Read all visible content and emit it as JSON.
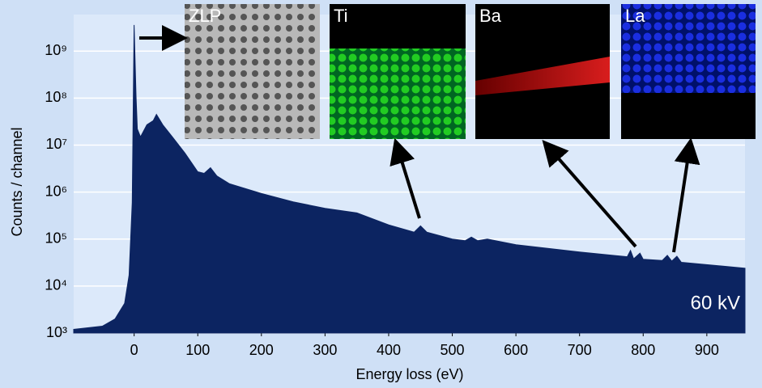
{
  "chart_data": {
    "type": "area",
    "color": "#0c2461",
    "log_y": true,
    "grid": true,
    "x_label": "Energy loss (eV)",
    "y_label": "Counts / channel",
    "annotation": "60 kV",
    "insets": [
      "ZLP",
      "Ti",
      "Ba",
      "La"
    ],
    "xlim": [
      -95,
      960
    ],
    "xticks": [
      0,
      100,
      200,
      300,
      400,
      500,
      600,
      700,
      800,
      900
    ],
    "ylim": [
      1000,
      6000000000
    ],
    "yticks": [
      {
        "value": 1000,
        "label": "10³"
      },
      {
        "value": 10000,
        "label": "10⁴"
      },
      {
        "value": 100000,
        "label": "10⁵"
      },
      {
        "value": 1000000,
        "label": "10⁶"
      },
      {
        "value": 10000000,
        "label": "10⁷"
      },
      {
        "value": 100000000,
        "label": "10⁸"
      },
      {
        "value": 1000000000,
        "label": "10⁹"
      }
    ],
    "x": [
      -95,
      -50,
      -30,
      -15,
      -8,
      -3,
      0,
      3,
      5,
      10,
      20,
      30,
      35,
      45,
      60,
      80,
      100,
      110,
      120,
      130,
      150,
      200,
      250,
      300,
      350,
      400,
      440,
      450,
      460,
      500,
      520,
      530,
      540,
      555,
      600,
      700,
      775,
      780,
      785,
      795,
      800,
      830,
      838,
      845,
      853,
      860,
      960
    ],
    "values": [
      1200,
      1400,
      2000,
      4300,
      17000,
      600000,
      3600000000,
      110000000,
      22000000,
      15000000,
      27000000,
      33000000,
      45000000,
      27000000,
      15000000,
      6700000,
      2700000,
      2500000,
      3300000,
      2200000,
      1500000,
      930000,
      620000,
      450000,
      360000,
      200000,
      140000,
      190000,
      140000,
      100000,
      92000,
      110000,
      92000,
      100000,
      76000,
      53000,
      42000,
      57000,
      38000,
      50000,
      37000,
      35000,
      45000,
      34000,
      43000,
      32000,
      24000
    ]
  }
}
